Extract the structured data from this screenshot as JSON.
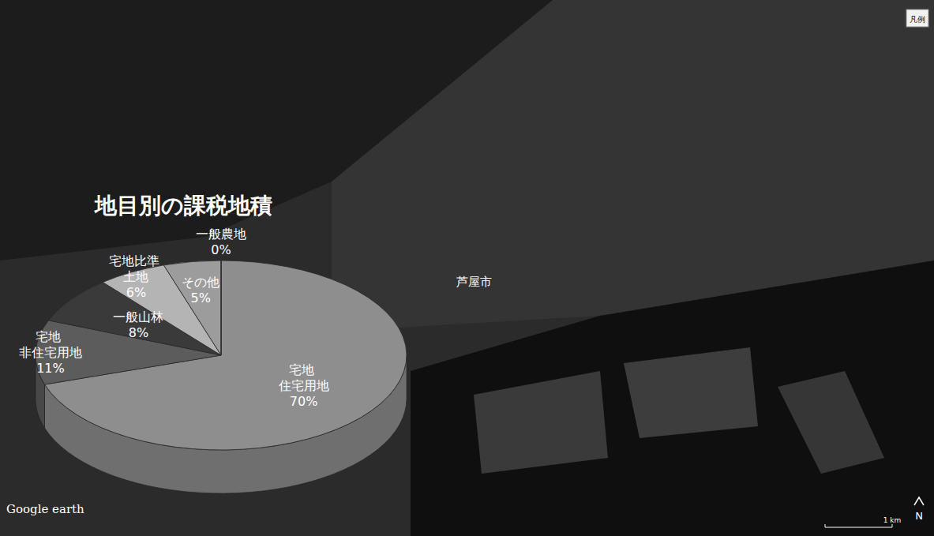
{
  "chart_data": {
    "type": "pie",
    "title": "地目別の課税地積",
    "categories": [
      "宅地 住宅用地",
      "宅地 非住宅用地",
      "一般山林",
      "宅地比準 土地",
      "その他",
      "一般農地"
    ],
    "values": [
      70,
      11,
      8,
      6,
      5,
      0
    ],
    "value_labels": [
      "70%",
      "11%",
      "8%",
      "6%",
      "5%",
      "0%"
    ],
    "colors": [
      "#8e8e8e",
      "#5c5c5c",
      "#3a3a3a",
      "#b4b4b4",
      "#9c9c9c",
      "#cccccc"
    ],
    "data_labels": true,
    "annotations": [
      "芦屋市",
      "凡例",
      "Google earth",
      "N",
      "1 km"
    ]
  }
}
